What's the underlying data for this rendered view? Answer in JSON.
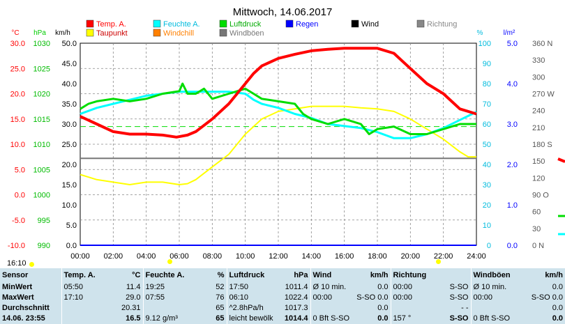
{
  "chart_data": {
    "type": "line",
    "title": "Mittwoch, 14.06.2017",
    "x_ticks": [
      "00:00",
      "02:00",
      "04:00",
      "06:00",
      "08:00",
      "10:00",
      "12:00",
      "14:00",
      "16:00",
      "18:00",
      "20:00",
      "22:00",
      "24:00"
    ],
    "axes": {
      "temp": {
        "unit": "°C",
        "ticks": [
          "30.0",
          "25.0",
          "20.0",
          "15.0",
          "10.0",
          "5.0",
          "0.0",
          "-5.0",
          "-10.0"
        ],
        "range": [
          -10,
          30
        ]
      },
      "pressure": {
        "unit": "hPa",
        "ticks": [
          "1030",
          "1025",
          "1020",
          "1015",
          "1010",
          "1005",
          "1000",
          "995",
          "990"
        ],
        "range": [
          990,
          1030
        ]
      },
      "wind": {
        "unit": "km/h",
        "ticks": [
          "50.0",
          "45.0",
          "40.0",
          "35.0",
          "30.0",
          "25.0",
          "20.0",
          "15.0",
          "10.0",
          "5.0",
          "0.0"
        ],
        "range": [
          0,
          50
        ]
      },
      "humidity": {
        "unit": "%",
        "ticks": [
          "100",
          "90",
          "80",
          "70",
          "60",
          "50",
          "40",
          "30",
          "20",
          "10",
          "0"
        ],
        "range": [
          0,
          100
        ]
      },
      "rain": {
        "unit": "l/m²",
        "ticks": [
          "5.0",
          "4.0",
          "3.0",
          "2.0",
          "1.0",
          "0.0"
        ],
        "range": [
          0,
          5
        ]
      },
      "direction": {
        "ticks": [
          "360 N",
          "330",
          "300",
          "270 W",
          "240",
          "210",
          "180 S",
          "150",
          "120",
          "90 O",
          "60",
          "30",
          "0 N"
        ],
        "range": [
          0,
          360
        ]
      }
    },
    "legend": [
      {
        "name": "Temp. A.",
        "color": "#ff0000"
      },
      {
        "name": "Feuchte A.",
        "color": "#00ffff"
      },
      {
        "name": "Luftdruck",
        "color": "#00dd00"
      },
      {
        "name": "Regen",
        "color": "#0000ff"
      },
      {
        "name": "Wind",
        "color": "#000000"
      },
      {
        "name": "Richtung",
        "color": "#888888"
      },
      {
        "name": "Taupunkt",
        "color": "#ffff00"
      },
      {
        "name": "Windchill",
        "color": "#ff8000"
      },
      {
        "name": "Windböen",
        "color": "#777777"
      }
    ],
    "series": [
      {
        "name": "Temp. A.",
        "axis": "temp",
        "color": "#ff0000",
        "x": [
          0,
          1,
          2,
          3,
          4,
          5,
          5.83,
          6.5,
          7,
          8,
          9,
          10,
          10.5,
          11,
          12,
          13,
          14,
          15,
          16,
          17,
          18,
          19,
          20,
          21,
          22,
          23,
          24
        ],
        "y": [
          15.5,
          14,
          12.5,
          12,
          12,
          11.8,
          11.4,
          11.8,
          12.5,
          15,
          18,
          22,
          24,
          25.5,
          27,
          27.8,
          28.5,
          28.8,
          29,
          29,
          29,
          28,
          25,
          22,
          20,
          17,
          16
        ]
      },
      {
        "name": "Feuchte A.",
        "axis": "humidity",
        "color": "#00ffff",
        "x": [
          0,
          1,
          2,
          3,
          4,
          5,
          6,
          7,
          8,
          9,
          10,
          10.5,
          11,
          12,
          13,
          14,
          15,
          16,
          17,
          18,
          19,
          20,
          21,
          22,
          23,
          24
        ],
        "y": [
          65,
          68,
          70,
          72,
          74,
          75,
          76,
          76,
          76,
          76,
          75,
          72,
          70,
          68,
          65,
          63,
          60,
          59,
          58,
          56,
          53,
          53,
          55,
          58,
          62,
          66
        ]
      },
      {
        "name": "Luftdruck",
        "axis": "pressure",
        "color": "#00dd00",
        "x": [
          0,
          0.5,
          1,
          2,
          3,
          4,
          5,
          6,
          6.2,
          6.5,
          7,
          7.5,
          8,
          9,
          10,
          10.5,
          11,
          12,
          13,
          13.5,
          14,
          15,
          16,
          17,
          17.5,
          18,
          19,
          20,
          21,
          22,
          23,
          24
        ],
        "y": [
          1017,
          1018,
          1018.5,
          1019,
          1018.5,
          1019,
          1020,
          1020.5,
          1022,
          1020,
          1020,
          1021,
          1019,
          1020,
          1021,
          1020,
          1019,
          1018.5,
          1018,
          1016,
          1015,
          1014,
          1015,
          1014,
          1012,
          1013,
          1013.5,
          1012,
          1012,
          1013,
          1014,
          1014
        ]
      },
      {
        "name": "Taupunkt",
        "axis": "temp",
        "color": "#ffff00",
        "x": [
          0,
          1,
          2,
          3,
          4,
          5,
          6,
          6.5,
          7,
          8,
          9,
          10,
          11,
          12,
          13,
          14,
          15,
          16,
          17,
          18,
          19,
          20,
          21,
          22,
          23,
          23.5,
          24
        ],
        "y": [
          4,
          3,
          2.5,
          2,
          2.5,
          2.5,
          2,
          2.2,
          3,
          5.5,
          8,
          12,
          15,
          16.5,
          17,
          17.5,
          17.5,
          17.5,
          17.2,
          17,
          16.5,
          15,
          13,
          11,
          8.5,
          7.5,
          7.5
        ]
      },
      {
        "name": "Wind",
        "axis": "wind",
        "color": "#777777",
        "x": [
          0,
          24
        ],
        "y": [
          21.5,
          21.5
        ]
      },
      {
        "name": "Regen",
        "axis": "rain",
        "color": "#0000ff",
        "x": [
          0,
          24
        ],
        "y": [
          0,
          0
        ]
      }
    ],
    "reference_line": {
      "axis": "temp",
      "value": 13.5,
      "color": "#00dd00"
    }
  },
  "time_label": "16:10",
  "table": {
    "headers": [
      "Sensor",
      "Temp. A.",
      "°C",
      "Feuchte A.",
      "%",
      "Luftdruck",
      "hPa",
      "Wind",
      "km/h",
      "Richtung",
      "",
      "Windböen",
      "km/h"
    ],
    "rows": [
      {
        "label": "MinWert",
        "cells": [
          "05:50",
          "11.4",
          "19:25",
          "52",
          "17:50",
          "1011.4",
          "Ø 10 min.",
          "0.0",
          "00:00",
          "S-SO",
          "Ø 10 min.",
          "0.0"
        ]
      },
      {
        "label": "MaxWert",
        "cells": [
          "17:10",
          "29.0",
          "07:55",
          "76",
          "06:10",
          "1022.4",
          "00:00",
          "S-SO 0.0",
          "00:00",
          "S-SO",
          "00:00",
          "S-SO 0.0"
        ]
      },
      {
        "label": "Durchschnitt",
        "cells": [
          "",
          "20.31",
          "",
          "65",
          "^2.8hPa/h",
          "1017.3",
          "",
          "0.0",
          "",
          "- -",
          "",
          "0.0"
        ]
      },
      {
        "label": "14.06. 23:55",
        "cells": [
          "",
          "16.5",
          "9.12 g/m³",
          "65",
          "leicht bewölk",
          "1014.4",
          "0 Bft S-SO",
          "0.0",
          "157 °",
          "S-SO",
          "0 Bft S-SO",
          "0.0"
        ]
      }
    ]
  }
}
